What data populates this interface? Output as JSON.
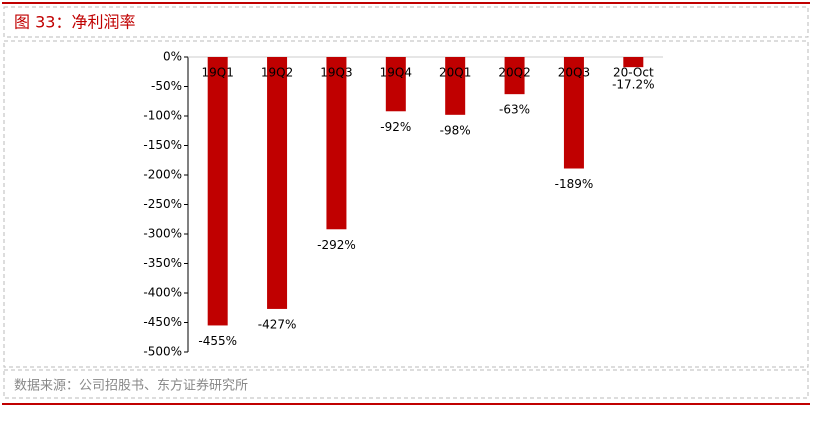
{
  "chart_data": {
    "type": "bar",
    "title": "图 33：净利润率",
    "source": "数据来源：公司招股书、东方证券研究所",
    "categories": [
      "19Q1",
      "19Q2",
      "19Q3",
      "19Q4",
      "20Q1",
      "20Q2",
      "20Q3",
      "20-Oct"
    ],
    "values": [
      -455,
      -427,
      -292,
      -92,
      -98,
      -63,
      -189,
      -17.2
    ],
    "value_labels": [
      "-455%",
      "-427%",
      "-292%",
      "-92%",
      "-98%",
      "-63%",
      "-189%",
      "-17.2%"
    ],
    "color": "#c00000",
    "ylim": [
      -500,
      0
    ],
    "yticks": [
      {
        "value": 0,
        "label": "0%"
      },
      {
        "value": -50,
        "label": "-50%"
      },
      {
        "value": -100,
        "label": "-100%"
      },
      {
        "value": -150,
        "label": "-150%"
      },
      {
        "value": -200,
        "label": "-200%"
      },
      {
        "value": -250,
        "label": "-250%"
      },
      {
        "value": -300,
        "label": "-300%"
      },
      {
        "value": -350,
        "label": "-350%"
      },
      {
        "value": -400,
        "label": "-400%"
      },
      {
        "value": -450,
        "label": "-450%"
      },
      {
        "value": -500,
        "label": "-500%"
      }
    ],
    "grid": false
  }
}
